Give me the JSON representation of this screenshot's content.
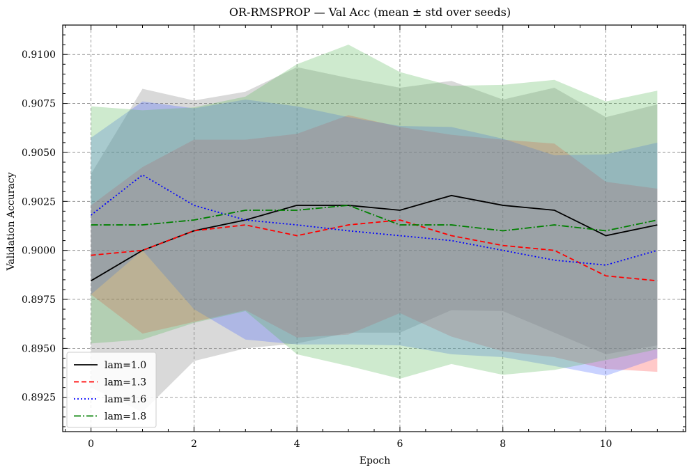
{
  "chart_data": {
    "type": "line",
    "title": "OR-RMSPROP — Val Acc (mean ± std over seeds)",
    "xlabel": "Epoch",
    "ylabel": "Validation Accuracy",
    "xlim": [
      -0.55,
      11.55
    ],
    "ylim": [
      0.89075,
      0.9115
    ],
    "xticks": [
      0,
      2,
      4,
      6,
      8,
      10
    ],
    "yticks": [
      0.8925,
      0.895,
      0.8975,
      0.9,
      0.9025,
      0.905,
      0.9075,
      0.91
    ],
    "xtick_labels": [
      "0",
      "2",
      "4",
      "6",
      "8",
      "10"
    ],
    "ytick_labels": [
      "0.8925",
      "0.8950",
      "0.8975",
      "0.9000",
      "0.9025",
      "0.9050",
      "0.9075",
      "0.9100"
    ],
    "grid": true,
    "legend_position": "lower-left",
    "x": [
      0,
      1,
      2,
      3,
      4,
      5,
      6,
      7,
      8,
      9,
      10,
      11
    ],
    "series": [
      {
        "name": "lam=1.0",
        "color": "#000000",
        "band_color": "#808080",
        "dash": "",
        "mean": [
          0.89845,
          0.9,
          0.901,
          0.90155,
          0.9023,
          0.9023,
          0.90205,
          0.9028,
          0.9023,
          0.90205,
          0.90075,
          0.9013
        ],
        "upper": [
          0.9039,
          0.90825,
          0.90765,
          0.9081,
          0.90935,
          0.9088,
          0.9083,
          0.90865,
          0.9077,
          0.9083,
          0.9068,
          0.90745
        ],
        "lower": [
          0.893,
          0.89175,
          0.89435,
          0.895,
          0.89525,
          0.8958,
          0.8958,
          0.89695,
          0.8969,
          0.8958,
          0.8947,
          0.89515
        ]
      },
      {
        "name": "lam=1.3",
        "color": "#ff0000",
        "band_color": "#ff4d4d",
        "dash": "7,4",
        "mean": [
          0.89975,
          0.9,
          0.901,
          0.9013,
          0.90075,
          0.9013,
          0.90155,
          0.90075,
          0.90025,
          0.9,
          0.8987,
          0.89845
        ],
        "upper": [
          0.9023,
          0.90425,
          0.90565,
          0.90565,
          0.90595,
          0.9069,
          0.9063,
          0.9059,
          0.90565,
          0.90545,
          0.9035,
          0.90315
        ],
        "lower": [
          0.89775,
          0.89575,
          0.89635,
          0.89695,
          0.89555,
          0.8957,
          0.8968,
          0.8956,
          0.89485,
          0.89455,
          0.89395,
          0.8938
        ]
      },
      {
        "name": "lam=1.6",
        "color": "#0000ff",
        "band_color": "#4d6bff",
        "dash": "2,3",
        "mean": [
          0.9018,
          0.90385,
          0.9023,
          0.90155,
          0.9013,
          0.901,
          0.90075,
          0.9005,
          0.9,
          0.8995,
          0.89925,
          0.9
        ],
        "upper": [
          0.90575,
          0.9076,
          0.90725,
          0.9077,
          0.90735,
          0.9068,
          0.90635,
          0.9063,
          0.9057,
          0.90485,
          0.9049,
          0.9055
        ],
        "lower": [
          0.89775,
          0.9,
          0.897,
          0.89545,
          0.8952,
          0.8952,
          0.89515,
          0.8947,
          0.89455,
          0.8941,
          0.8936,
          0.8945
        ]
      },
      {
        "name": "lam=1.8",
        "color": "#008000",
        "band_color": "#5cb85c",
        "dash": "10,3,2,3",
        "mean": [
          0.9013,
          0.9013,
          0.90155,
          0.90205,
          0.90205,
          0.9023,
          0.9013,
          0.9013,
          0.901,
          0.9013,
          0.901,
          0.90155
        ],
        "upper": [
          0.90735,
          0.90715,
          0.9073,
          0.90785,
          0.9095,
          0.9105,
          0.9091,
          0.9084,
          0.90845,
          0.9087,
          0.9076,
          0.90815
        ],
        "lower": [
          0.89525,
          0.89545,
          0.8963,
          0.8969,
          0.8947,
          0.8941,
          0.89345,
          0.8942,
          0.89365,
          0.8939,
          0.8944,
          0.89495
        ]
      }
    ]
  }
}
